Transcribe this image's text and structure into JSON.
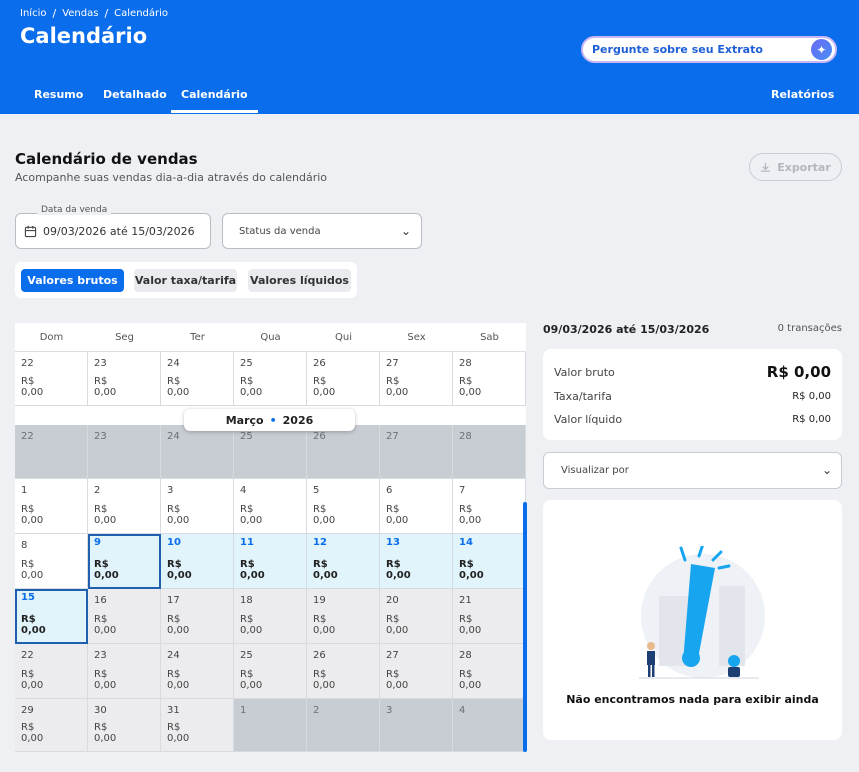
{
  "breadcrumb": [
    "Início",
    "Vendas",
    "Calendário"
  ],
  "page_title": "Calendário",
  "ask": {
    "label": "Pergunte sobre seu Extrato",
    "icon": "sparkle-icon"
  },
  "tabs": {
    "resumo": "Resumo",
    "detalhado": "Detalhado",
    "calendario": "Calendário",
    "relatorios": "Relatórios"
  },
  "section": {
    "title": "Calendário de vendas",
    "subtitle": "Acompanhe suas vendas dia-a-dia através do calendário",
    "export": "Exportar"
  },
  "filters": {
    "date_label": "Data da venda",
    "date_value": "09/03/2026 até 15/03/2026",
    "status_placeholder": "Status da venda"
  },
  "value_modes": {
    "brutos": "Valores brutos",
    "taxa": "Valor taxa/tarifa",
    "liquidos": "Valores líquidos"
  },
  "calendar": {
    "weekdays": [
      "Dom",
      "Seg",
      "Ter",
      "Qua",
      "Qui",
      "Sex",
      "Sab"
    ],
    "month_label": "Março",
    "year_label": "2026",
    "dot": "•",
    "currency": "R$",
    "amount": "0,00",
    "rows": [
      [
        "22",
        "23",
        "24",
        "25",
        "26",
        "27",
        "28"
      ],
      [
        "22",
        "23",
        "24",
        "25",
        "26",
        "27",
        "28"
      ],
      [
        "1",
        "2",
        "3",
        "4",
        "5",
        "6",
        "7"
      ],
      [
        "8",
        "9",
        "10",
        "11",
        "12",
        "13",
        "14"
      ],
      [
        "15",
        "16",
        "17",
        "18",
        "19",
        "20",
        "21"
      ],
      [
        "22",
        "23",
        "24",
        "25",
        "26",
        "27",
        "28"
      ],
      [
        "29",
        "30",
        "31",
        "1",
        "2",
        "3",
        "4"
      ]
    ]
  },
  "summary": {
    "range": "09/03/2026 até 15/03/2026",
    "transactions": "0 transações",
    "bruto_label": "Valor bruto",
    "bruto_value": "R$ 0,00",
    "taxa_label": "Taxa/tarifa",
    "taxa_value": "R$ 0,00",
    "liquido_label": "Valor líquido",
    "liquido_value": "R$ 0,00",
    "view_by": "Visualizar por",
    "empty_message": "Não encontramos nada para exibir ainda"
  },
  "colors": {
    "brand": "#0a6dec",
    "selected_week": "#e1f3fb",
    "out_of_month": "#c8ccd3"
  }
}
